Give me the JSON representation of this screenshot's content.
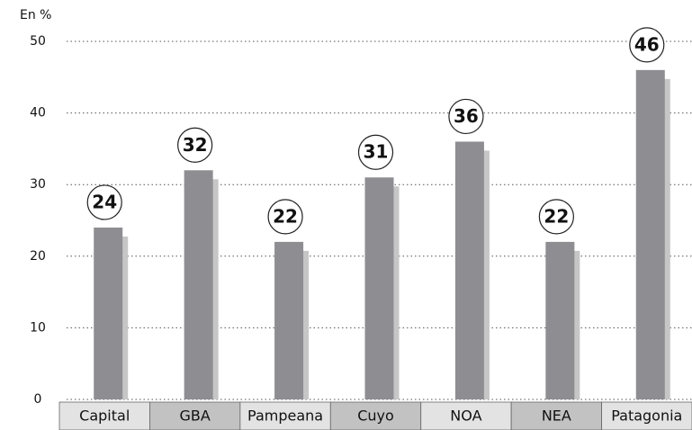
{
  "chart_data": {
    "type": "bar",
    "ylabel": "En %",
    "categories": [
      "Capital",
      "GBA",
      "Pampeana",
      "Cuyo",
      "NOA",
      "NEA",
      "Patagonia"
    ],
    "values": [
      24,
      32,
      22,
      31,
      36,
      22,
      46
    ],
    "color": "#8e8e92",
    "ylim": [
      0,
      50
    ],
    "yticks": [
      0,
      10,
      20,
      30,
      40,
      50
    ],
    "grid": true
  }
}
